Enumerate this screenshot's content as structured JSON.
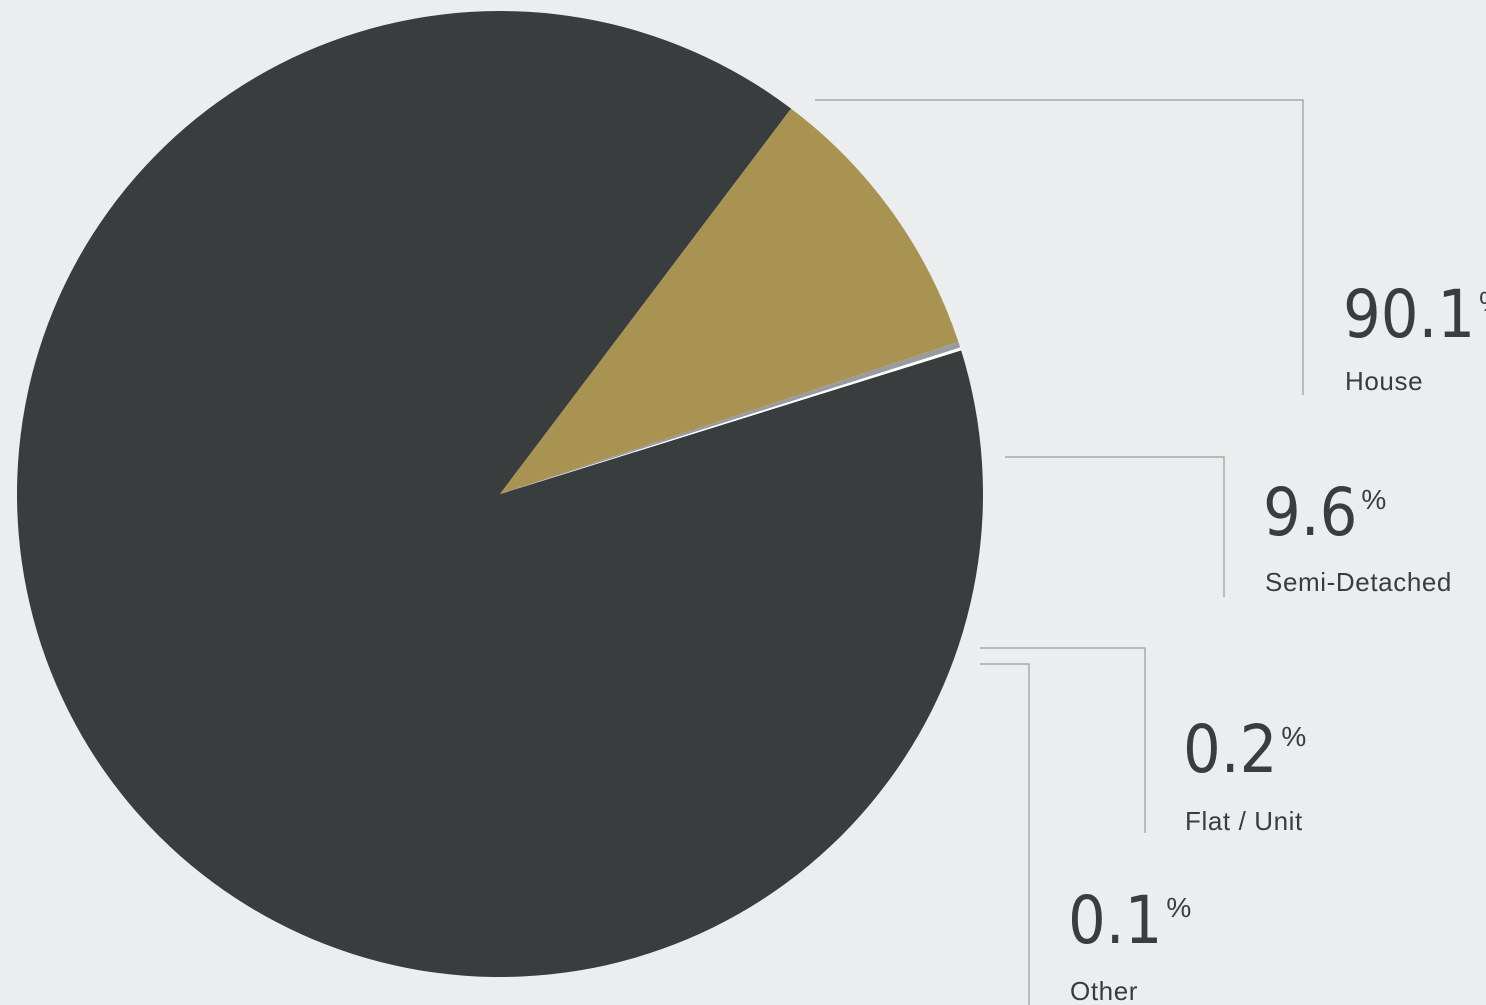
{
  "chart_data": {
    "type": "pie",
    "slices": [
      {
        "label": "House",
        "value": 90.1,
        "display": "90.1",
        "color": "#3a3d3d"
      },
      {
        "label": "Semi-Detached",
        "value": 9.6,
        "display": "9.6",
        "color": "#a99352"
      },
      {
        "label": "Flat / Unit",
        "value": 0.2,
        "display": "0.2",
        "color": "#9a9b9c"
      },
      {
        "label": "Other",
        "value": 0.1,
        "display": "0.1",
        "color": "#ffffff"
      }
    ],
    "unit": "%",
    "background": "#ecedee"
  }
}
